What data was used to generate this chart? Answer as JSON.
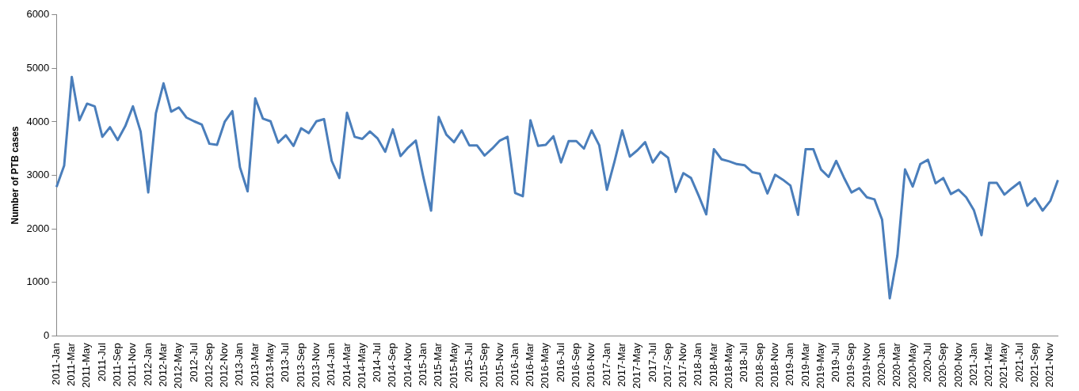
{
  "chart_data": {
    "type": "line",
    "ylabel": "Number of PTB cases",
    "categories": [
      "2011-Jan",
      null,
      "2011-Mar",
      null,
      "2011-May",
      null,
      "2011-Jul",
      null,
      "2011-Sep",
      null,
      "2011-Nov",
      null,
      "2012-Jan",
      null,
      "2012-Mar",
      null,
      "2012-May",
      null,
      "2012-Jul",
      null,
      "2012-Sep",
      null,
      "2012-Nov",
      null,
      "2013-Jan",
      null,
      "2013-Mar",
      null,
      "2013-May",
      null,
      "2013-Jul",
      null,
      "2013-Sep",
      null,
      "2013-Nov",
      null,
      "2014-Jan",
      null,
      "2014-Mar",
      null,
      "2014-May",
      null,
      "2014-Jul",
      null,
      "2014-Sep",
      null,
      "2014-Nov",
      null,
      "2015-Jan",
      null,
      "2015-Mar",
      null,
      "2015-May",
      null,
      "2015-Jul",
      null,
      "2015-Sep",
      null,
      "2015-Nov",
      null,
      "2016-Jan",
      null,
      "2016-Mar",
      null,
      "2016-May",
      null,
      "2016-Jul",
      null,
      "2016-Sep",
      null,
      "2016-Nov",
      null,
      "2017-Jan",
      null,
      "2017-Mar",
      null,
      "2017-May",
      null,
      "2017-Jul",
      null,
      "2017-Sep",
      null,
      "2017-Nov",
      null,
      "2018-Jan",
      null,
      "2018-Mar",
      null,
      "2018-May",
      null,
      "2018-Jul",
      null,
      "2018-Sep",
      null,
      "2018-Nov",
      null,
      "2019-Jan",
      null,
      "2019-Mar",
      null,
      "2019-May",
      null,
      "2019-Jul",
      null,
      "2019-Sep",
      null,
      "2019-Nov",
      null,
      "2020-Jan",
      null,
      "2020-Mar",
      null,
      "2020-May",
      null,
      "2020-Jul",
      null,
      "2020-Sep",
      null,
      "2020-Nov",
      null,
      "2021-Jan",
      null,
      "2021-Mar",
      null,
      "2021-May",
      null,
      "2021-Jul",
      null,
      "2021-Sep",
      null,
      "2021-Nov",
      null
    ],
    "series": [
      {
        "color": "#4a7ebb",
        "values": [
          2780,
          3180,
          4840,
          4030,
          4340,
          4290,
          3720,
          3900,
          3660,
          3920,
          4290,
          3820,
          2680,
          4160,
          4720,
          4190,
          4270,
          4080,
          4010,
          3950,
          3590,
          3570,
          4000,
          4200,
          3150,
          2700,
          4440,
          4060,
          4010,
          3610,
          3750,
          3550,
          3880,
          3790,
          4010,
          4050,
          3270,
          2950,
          4170,
          3720,
          3680,
          3820,
          3690,
          3440,
          3860,
          3360,
          3520,
          3650,
          2960,
          2340,
          4090,
          3760,
          3620,
          3840,
          3560,
          3560,
          3370,
          3500,
          3650,
          3720,
          2670,
          2610,
          4030,
          3550,
          3570,
          3730,
          3240,
          3640,
          3640,
          3500,
          3840,
          3560,
          2730,
          3260,
          3840,
          3350,
          3470,
          3620,
          3240,
          3440,
          3330,
          2690,
          3040,
          2950,
          2620,
          2270,
          3490,
          3300,
          3260,
          3210,
          3190,
          3060,
          3030,
          2660,
          3010,
          2920,
          2810,
          2260,
          3490,
          3490,
          3110,
          2970,
          3270,
          2960,
          2680,
          2760,
          2590,
          2550,
          2170,
          700,
          1500,
          3110,
          2790,
          3210,
          3290,
          2850,
          2950,
          2650,
          2730,
          2590,
          2350,
          1880,
          2860,
          2860,
          2640,
          2760,
          2870,
          2430,
          2570,
          2340,
          2520,
          2910
        ]
      }
    ],
    "ylim": [
      0,
      6000
    ],
    "yticks": [
      0,
      1000,
      2000,
      3000,
      4000,
      5000,
      6000
    ],
    "grid": false,
    "legend": false,
    "marker": "none",
    "line_style": "solid"
  }
}
